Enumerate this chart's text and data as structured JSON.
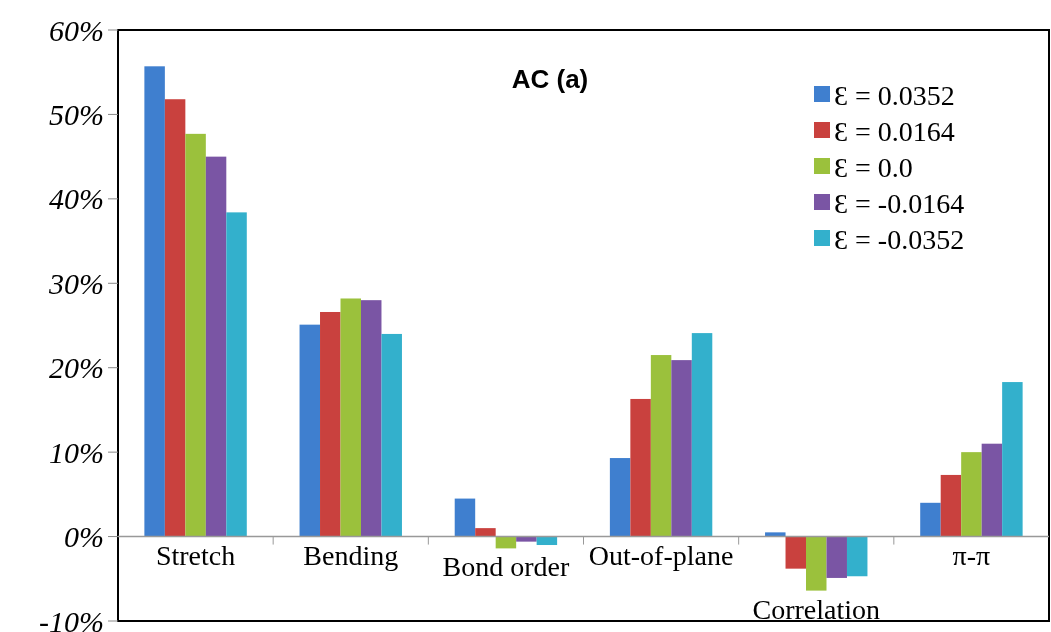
{
  "chart_data": {
    "type": "bar",
    "title": "AC (a)",
    "categories": [
      "Stretch",
      "Bending",
      "Bond order",
      "Out-of-plane",
      "Correlation",
      "π-π"
    ],
    "series": [
      {
        "name": "Ɛ = 0.0352",
        "color": "#3f7fcf",
        "values": [
          55.7,
          25.1,
          4.5,
          9.3,
          0.5,
          4.0
        ]
      },
      {
        "name": "Ɛ = 0.0164",
        "color": "#c9413e",
        "values": [
          51.8,
          26.6,
          1.0,
          16.3,
          -3.8,
          7.3
        ]
      },
      {
        "name": "Ɛ = 0.0",
        "color": "#9bc13c",
        "values": [
          47.7,
          28.2,
          -1.4,
          21.5,
          -6.4,
          10.0
        ]
      },
      {
        "name": "Ɛ = -0.0164",
        "color": "#7a55a4",
        "values": [
          45.0,
          28.0,
          -0.6,
          20.9,
          -4.9,
          11.0
        ]
      },
      {
        "name": "Ɛ = -0.0352",
        "color": "#33b0cc",
        "values": [
          38.4,
          24.0,
          -1.0,
          24.1,
          -4.7,
          18.3
        ]
      }
    ],
    "ylim": [
      -10,
      60
    ],
    "yticks": [
      {
        "value": -10,
        "label": "-10%"
      },
      {
        "value": 0,
        "label": "0%"
      },
      {
        "value": 10,
        "label": "10%"
      },
      {
        "value": 20,
        "label": "20%"
      },
      {
        "value": 30,
        "label": "30%"
      },
      {
        "value": 40,
        "label": "40%"
      },
      {
        "value": 50,
        "label": "50%"
      },
      {
        "value": 60,
        "label": "60%"
      }
    ],
    "grid": false,
    "legend": "top right"
  }
}
